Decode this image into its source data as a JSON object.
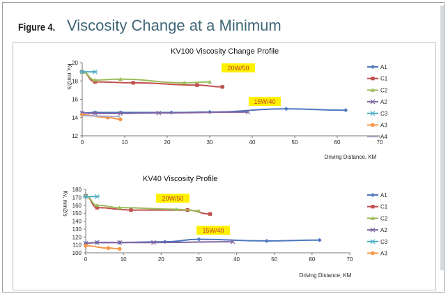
{
  "figure": {
    "label": "Figure 4.",
    "title": "Viscosity Change at a Minimum"
  },
  "chart_data": [
    {
      "type": "line",
      "title": "KV100 Viscosity Change Profile",
      "xlabel": "Driving Distance, KM",
      "ylabel": "Kv, mm2/s",
      "xlim": [
        0,
        70
      ],
      "ylim": [
        12,
        20
      ],
      "xticks": [
        "0",
        "10",
        "20",
        "30",
        "40",
        "50",
        "60",
        "70"
      ],
      "yticks": [
        "12",
        "14",
        "16",
        "18",
        "20"
      ],
      "grid": false,
      "legend": "right",
      "annotations": [
        {
          "text": "20W/50",
          "x": 33.5,
          "y": 19.1
        },
        {
          "text": "15W/40",
          "x": 44,
          "y": 15.5
        }
      ],
      "series": [
        {
          "name": "A1",
          "color": "#4b77be",
          "marker": "diamond",
          "x": [
            0,
            3,
            9,
            21,
            30,
            48,
            62
          ],
          "y": [
            14.5,
            14.55,
            14.55,
            14.55,
            14.6,
            14.95,
            14.8
          ]
        },
        {
          "name": "C1",
          "color": "#c0504d",
          "marker": "square",
          "x": [
            0,
            3,
            12,
            27,
            33
          ],
          "y": [
            19.0,
            17.9,
            17.8,
            17.55,
            17.35
          ]
        },
        {
          "name": "C2",
          "color": "#9bbb59",
          "marker": "triangle",
          "x": [
            0,
            3,
            9,
            24,
            30
          ],
          "y": [
            19.0,
            18.1,
            18.2,
            17.8,
            17.9
          ]
        },
        {
          "name": "A2",
          "color": "#8064a2",
          "marker": "x",
          "x": [
            0,
            3,
            9,
            18,
            39
          ],
          "y": [
            14.5,
            14.45,
            14.45,
            14.5,
            14.6
          ]
        },
        {
          "name": "C3",
          "color": "#4bacc6",
          "marker": "star",
          "x": [
            0,
            3
          ],
          "y": [
            19.0,
            19.0
          ]
        },
        {
          "name": "A3",
          "color": "#f79646",
          "marker": "circle",
          "x": [
            0,
            6,
            9
          ],
          "y": [
            14.3,
            14.0,
            13.8
          ]
        },
        {
          "name": "A4",
          "color": "#a9a9c8",
          "marker": "none",
          "x": [
            0,
            9
          ],
          "y": [
            14.2,
            14.1
          ]
        }
      ]
    },
    {
      "type": "line",
      "title": "KV40 Viscosity Profile",
      "xlabel": "Driving Distance, KM",
      "ylabel": "Kv, mm2/s",
      "xlim": [
        0,
        70
      ],
      "ylim": [
        100,
        180
      ],
      "xticks": [
        "0",
        "10",
        "20",
        "30",
        "40",
        "50",
        "60",
        "70"
      ],
      "yticks": [
        "100",
        "110",
        "120",
        "130",
        "140",
        "150",
        "160",
        "170",
        "180"
      ],
      "grid": false,
      "legend": "right",
      "annotations": [
        {
          "text": "20W/50",
          "x": 21,
          "y": 164
        },
        {
          "text": "15W/40",
          "x": 28,
          "y": 123
        }
      ],
      "series": [
        {
          "name": "A1",
          "color": "#4b77be",
          "marker": "diamond",
          "x": [
            0,
            3,
            9,
            21,
            30,
            48,
            62
          ],
          "y": [
            112,
            113,
            113,
            114,
            117,
            115,
            116
          ]
        },
        {
          "name": "C1",
          "color": "#c0504d",
          "marker": "square",
          "x": [
            0,
            3,
            12,
            27,
            33
          ],
          "y": [
            172,
            157,
            154,
            154,
            149
          ]
        },
        {
          "name": "C2",
          "color": "#9bbb59",
          "marker": "triangle",
          "x": [
            0,
            3,
            9,
            24,
            30
          ],
          "y": [
            172,
            160,
            157,
            155,
            153
          ]
        },
        {
          "name": "A2",
          "color": "#8064a2",
          "marker": "x",
          "x": [
            0,
            3,
            9,
            18,
            39
          ],
          "y": [
            112,
            113,
            113,
            113,
            114
          ]
        },
        {
          "name": "C3",
          "color": "#4bacc6",
          "marker": "star",
          "x": [
            0,
            3
          ],
          "y": [
            171,
            171
          ]
        },
        {
          "name": "A3",
          "color": "#f79646",
          "marker": "circle",
          "x": [
            0,
            6,
            9
          ],
          "y": [
            109,
            106,
            105
          ]
        }
      ]
    }
  ]
}
